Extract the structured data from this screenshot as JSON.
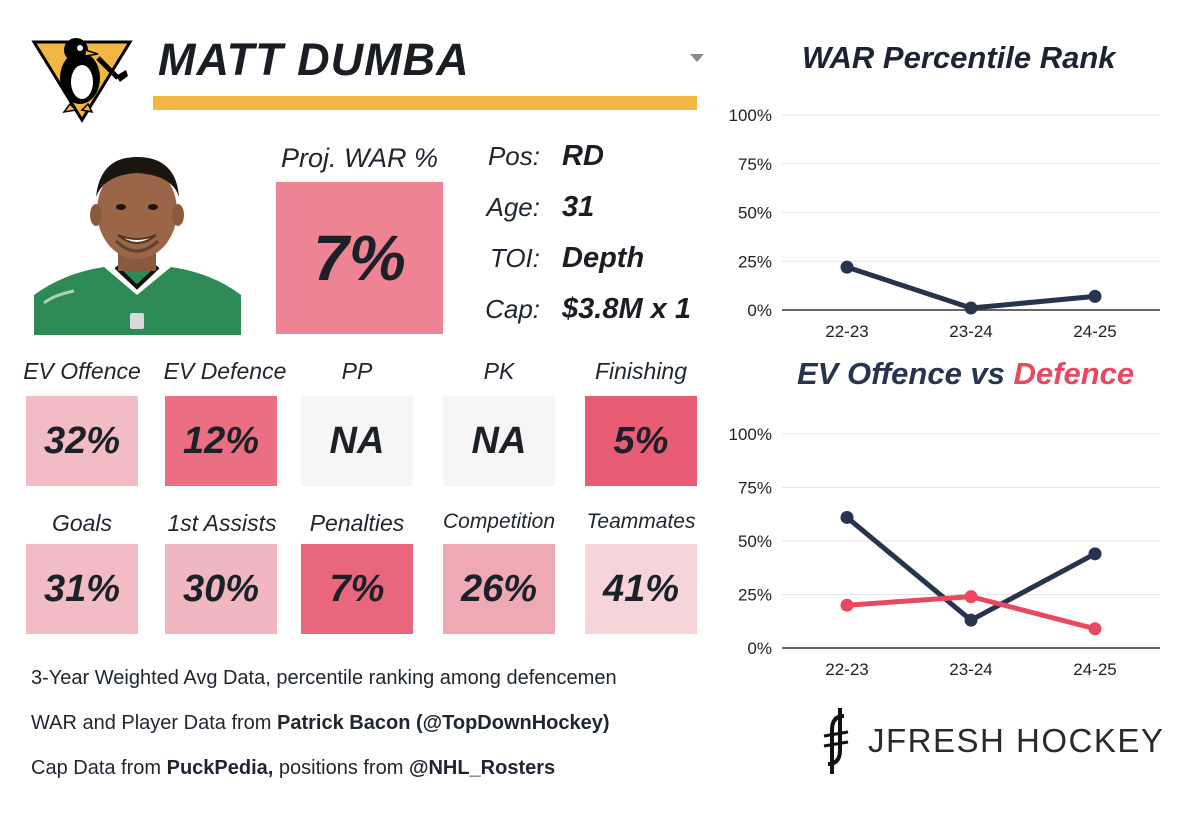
{
  "header": {
    "player_name": "MATT DUMBA",
    "team_logo_icon": "penguins-logo-icon",
    "dropdown_icon": "caret-down-icon"
  },
  "photo": {
    "icon": "player-headshot-image"
  },
  "projected_war": {
    "label": "Proj. WAR %",
    "value": "7%"
  },
  "info": [
    {
      "key": "Pos:",
      "value": "RD"
    },
    {
      "key": "Age:",
      "value": "31"
    },
    {
      "key": "TOI:",
      "value": "Depth"
    },
    {
      "key": "Cap:",
      "value": "$3.8M x 1"
    }
  ],
  "tiles_row1": [
    {
      "label": "EV Offence",
      "value": "32%",
      "color": "#f2bcc4"
    },
    {
      "label": "EV Defence",
      "value": "12%",
      "color": "#ea6f83"
    },
    {
      "label": "PP",
      "value": "NA",
      "color": "#f7f5f5"
    },
    {
      "label": "PK",
      "value": "NA",
      "color": "#f7f5f5"
    },
    {
      "label": "Finishing",
      "value": "5%",
      "color": "#e85d74"
    }
  ],
  "tiles_row2": [
    {
      "label": "Goals",
      "value": "31%",
      "color": "#f2bcc4"
    },
    {
      "label": "1st Assists",
      "value": "30%",
      "color": "#f1b7c0"
    },
    {
      "label": "Penalties",
      "value": "7%",
      "color": "#e9677d"
    },
    {
      "label": "Competition",
      "value": "26%",
      "color": "#efa9b4"
    },
    {
      "label": "Teammates",
      "value": "41%",
      "color": "#f5d5da"
    }
  ],
  "footer": {
    "line1": "3-Year Weighted Avg Data, percentile ranking among defencemen",
    "line2_prefix": "WAR and Player Data from ",
    "line2_bold": "Patrick Bacon (@TopDownHockey)",
    "line3_prefix": "Cap Data from ",
    "line3_bold1": "PuckPedia,",
    "line3_mid": " positions from ",
    "line3_bold2": "@NHL_Rosters"
  },
  "brand": {
    "text": "JFRESH HOCKEY",
    "icon": "jfresh-logo-icon"
  },
  "colors": {
    "navy": "#27344d",
    "pink": "#e8495e",
    "gold": "#f2b742"
  },
  "chart_data": [
    {
      "type": "line",
      "title": "WAR Percentile Rank",
      "categories": [
        "22-23",
        "23-24",
        "24-25"
      ],
      "yticks": [
        "0%",
        "25%",
        "50%",
        "75%",
        "100%"
      ],
      "ylim": [
        0,
        100
      ],
      "grid": true,
      "series": [
        {
          "values": [
            22,
            1,
            7
          ],
          "color": "#27344d"
        }
      ]
    },
    {
      "type": "line",
      "title_part1": "EV Offence vs ",
      "title_part2": "Defence",
      "categories": [
        "22-23",
        "23-24",
        "24-25"
      ],
      "yticks": [
        "0%",
        "25%",
        "50%",
        "75%",
        "100%"
      ],
      "ylim": [
        0,
        100
      ],
      "grid": true,
      "series": [
        {
          "name": "EV Offence",
          "values": [
            61,
            13,
            44
          ],
          "color": "#27344d"
        },
        {
          "name": "Defence",
          "values": [
            20,
            24,
            9
          ],
          "color": "#e8495e"
        }
      ]
    }
  ]
}
